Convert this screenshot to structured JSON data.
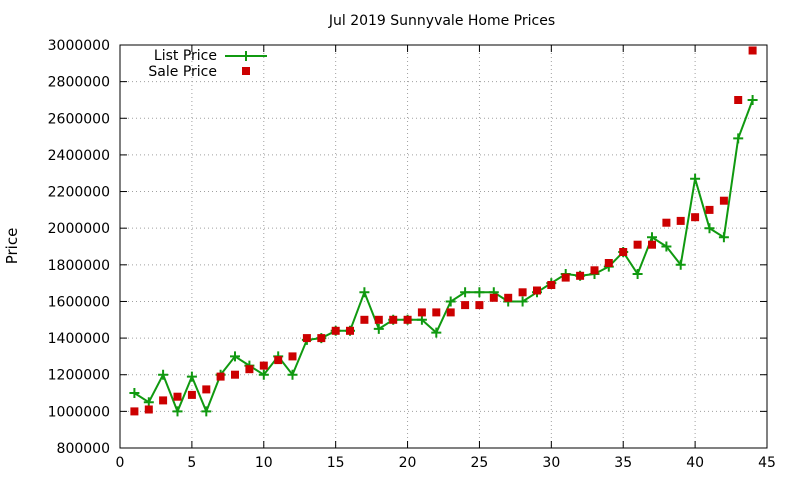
{
  "chart_data": {
    "type": "line",
    "title": "Jul 2019 Sunnyvale Home Prices",
    "xlabel": "",
    "ylabel": "Price",
    "xlim": [
      0,
      45
    ],
    "ylim": [
      800000,
      3000000
    ],
    "xticks": [
      "0",
      "5",
      "10",
      "15",
      "20",
      "25",
      "30",
      "35",
      "40",
      "45"
    ],
    "yticks": [
      "800000",
      "1000000",
      "1200000",
      "1400000",
      "1600000",
      "1800000",
      "2000000",
      "2200000",
      "2400000",
      "2600000",
      "2800000",
      "3000000"
    ],
    "grid": true,
    "legend_position": "top-left",
    "series": [
      {
        "name": "List Price",
        "style": "line-with-plus-markers",
        "color": "#109910",
        "x": [
          1,
          2,
          3,
          4,
          5,
          6,
          7,
          8,
          9,
          10,
          11,
          12,
          13,
          14,
          15,
          16,
          17,
          18,
          19,
          20,
          21,
          22,
          23,
          24,
          25,
          26,
          27,
          28,
          29,
          30,
          31,
          32,
          33,
          34,
          35,
          36,
          37,
          38,
          39,
          40,
          41,
          42,
          43,
          44
        ],
        "values": [
          1100000,
          1050000,
          1200000,
          1000000,
          1190000,
          1000000,
          1200000,
          1300000,
          1250000,
          1200000,
          1300000,
          1200000,
          1390000,
          1400000,
          1440000,
          1440000,
          1650000,
          1450000,
          1500000,
          1500000,
          1500000,
          1430000,
          1600000,
          1650000,
          1650000,
          1650000,
          1600000,
          1600000,
          1650000,
          1700000,
          1750000,
          1740000,
          1750000,
          1790000,
          1870000,
          1750000,
          1950000,
          1900000,
          1800000,
          2270000,
          2000000,
          1950000,
          2490000,
          2700000
        ]
      },
      {
        "name": "Sale Price",
        "style": "square-markers",
        "color": "#cc0000",
        "x": [
          1,
          2,
          3,
          4,
          5,
          6,
          7,
          8,
          9,
          10,
          11,
          12,
          13,
          14,
          15,
          16,
          17,
          18,
          19,
          20,
          21,
          22,
          23,
          24,
          25,
          26,
          27,
          28,
          29,
          30,
          31,
          32,
          33,
          34,
          35,
          36,
          37,
          38,
          39,
          40,
          41,
          42,
          43,
          44
        ],
        "values": [
          1000000,
          1010000,
          1060000,
          1080000,
          1090000,
          1120000,
          1190000,
          1200000,
          1230000,
          1250000,
          1280000,
          1300000,
          1400000,
          1400000,
          1440000,
          1440000,
          1500000,
          1500000,
          1500000,
          1500000,
          1540000,
          1540000,
          1540000,
          1580000,
          1580000,
          1620000,
          1620000,
          1650000,
          1660000,
          1690000,
          1730000,
          1740000,
          1770000,
          1810000,
          1870000,
          1910000,
          1910000,
          2030000,
          2040000,
          2060000,
          2100000,
          2150000,
          2700000,
          2970000
        ]
      }
    ]
  }
}
